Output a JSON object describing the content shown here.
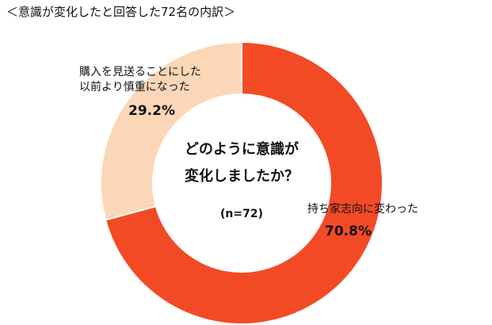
{
  "title": "＜意識が変化したと回答した72名の内訳＞",
  "chart_data": {
    "type": "pie",
    "categories": [
      "持ち家志向に変わった",
      "購入を見送ることにした以前より慎重になった"
    ],
    "values": [
      70.8,
      29.2
    ],
    "value_labels": [
      "70.8%",
      "29.2%"
    ],
    "colors": [
      "#f34a26",
      "#fbd7b8"
    ],
    "center_question": [
      "どのように意識が",
      "変化しましたか？"
    ],
    "center_n": "(n=72)"
  },
  "slice_labels": [
    {
      "lines": [
        "持ち家志向に変わった"
      ],
      "pct": "70.8%"
    },
    {
      "lines": [
        "購入を見送ることにした",
        "以前より慎重になった"
      ],
      "pct": "29.2%"
    }
  ]
}
